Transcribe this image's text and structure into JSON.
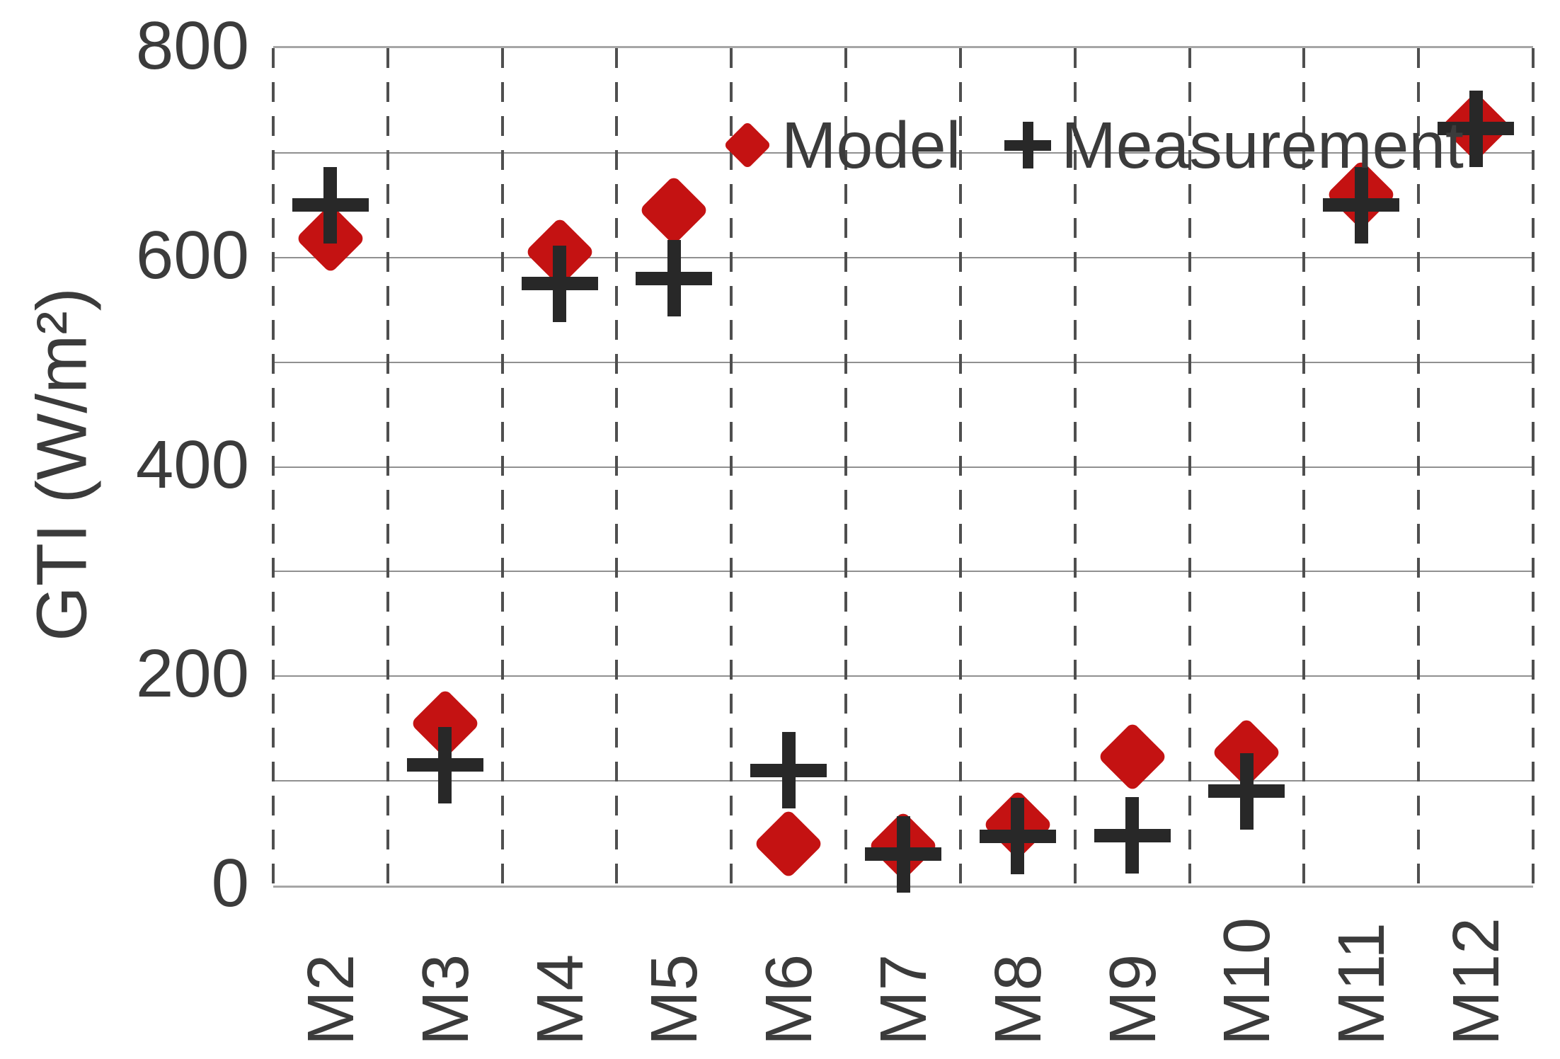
{
  "chart_data": {
    "type": "scatter",
    "title": "",
    "xlabel": "",
    "ylabel": "GTI (W/m²)",
    "categories": [
      "M2",
      "M3",
      "M4",
      "M5",
      "M6",
      "M7",
      "M8",
      "M9",
      "M10",
      "M11",
      "M12"
    ],
    "ylim": [
      0,
      800
    ],
    "yticks": [
      800,
      600,
      400,
      200,
      0
    ],
    "grid": {
      "horizontal": "solid gray lines every 100 W/m2",
      "vertical": "dashed dark lines at category boundaries"
    },
    "legend_position": "inside plot, top",
    "series": [
      {
        "name": "Model",
        "marker": "diamond",
        "color": "#c41212",
        "values": [
          618,
          155,
          605,
          645,
          40,
          38,
          58,
          123,
          127,
          660,
          725
        ]
      },
      {
        "name": "Measurement",
        "marker": "plus",
        "color": "#282828",
        "values": [
          650,
          115,
          575,
          580,
          110,
          30,
          47,
          48,
          90,
          650,
          723
        ]
      }
    ]
  },
  "colors": {
    "model_red": "#c41212",
    "measurement_black": "#282828",
    "grid_gray": "#909090",
    "border_gray": "#a6a6a6",
    "dashed_gray": "#4f4f4f",
    "text_gray": "#3b3b3b"
  }
}
